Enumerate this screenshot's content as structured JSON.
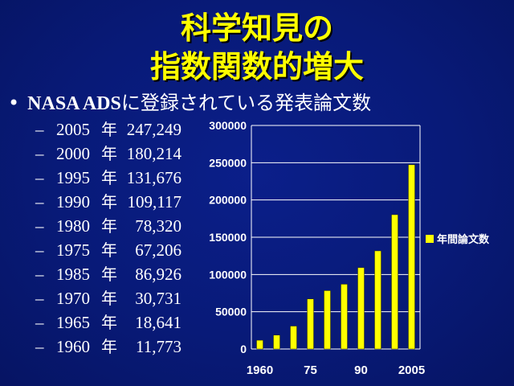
{
  "slide": {
    "title_line1": "科学知見の",
    "title_line2": "指数関数的増大",
    "bullet": {
      "marker": "•",
      "text_en": "NASA ADS",
      "text_jp": "に登録されている発表論文数"
    },
    "sub_items": [
      {
        "dash": "–",
        "year": "2005",
        "nen": "年",
        "value": "247,249"
      },
      {
        "dash": "–",
        "year": "2000",
        "nen": "年",
        "value": "180,214"
      },
      {
        "dash": "–",
        "year": "1995",
        "nen": "年",
        "value": "131,676"
      },
      {
        "dash": "–",
        "year": "1990",
        "nen": "年",
        "value": "109,117"
      },
      {
        "dash": "–",
        "year": "1980",
        "nen": "年",
        "value": "78,320"
      },
      {
        "dash": "–",
        "year": "1975",
        "nen": "年",
        "value": "67,206"
      },
      {
        "dash": "–",
        "year": "1985",
        "nen": "年",
        "value": "86,926"
      },
      {
        "dash": "–",
        "year": "1970",
        "nen": "年",
        "value": "30,731"
      },
      {
        "dash": "–",
        "year": "1965",
        "nen": "年",
        "value": "18,641"
      },
      {
        "dash": "–",
        "year": "1960",
        "nen": "年",
        "value": "11,773"
      }
    ]
  },
  "chart_data": {
    "type": "bar",
    "categories": [
      "1960",
      "1965",
      "1970",
      "1975",
      "1980",
      "1985",
      "1990",
      "1995",
      "2000",
      "2005"
    ],
    "x_tick_labels": [
      "1960",
      "",
      "",
      "75",
      "",
      "",
      "90",
      "",
      "",
      "2005"
    ],
    "series": [
      {
        "name": "年間論文数",
        "values": [
          11773,
          18641,
          30731,
          67206,
          78320,
          86926,
          109117,
          131676,
          180214,
          247249
        ],
        "color": "#ffff00"
      }
    ],
    "y_ticks": [
      "300000",
      "250000",
      "200000",
      "150000",
      "100000",
      "50000",
      "0"
    ],
    "ylim": [
      0,
      300000
    ],
    "grid": true,
    "legend_position": "right",
    "title": "",
    "xlabel": "",
    "ylabel": ""
  },
  "colors": {
    "background": "#081a78",
    "title": "#ffff00",
    "text": "#ffffff",
    "bar": "#ffff00"
  }
}
